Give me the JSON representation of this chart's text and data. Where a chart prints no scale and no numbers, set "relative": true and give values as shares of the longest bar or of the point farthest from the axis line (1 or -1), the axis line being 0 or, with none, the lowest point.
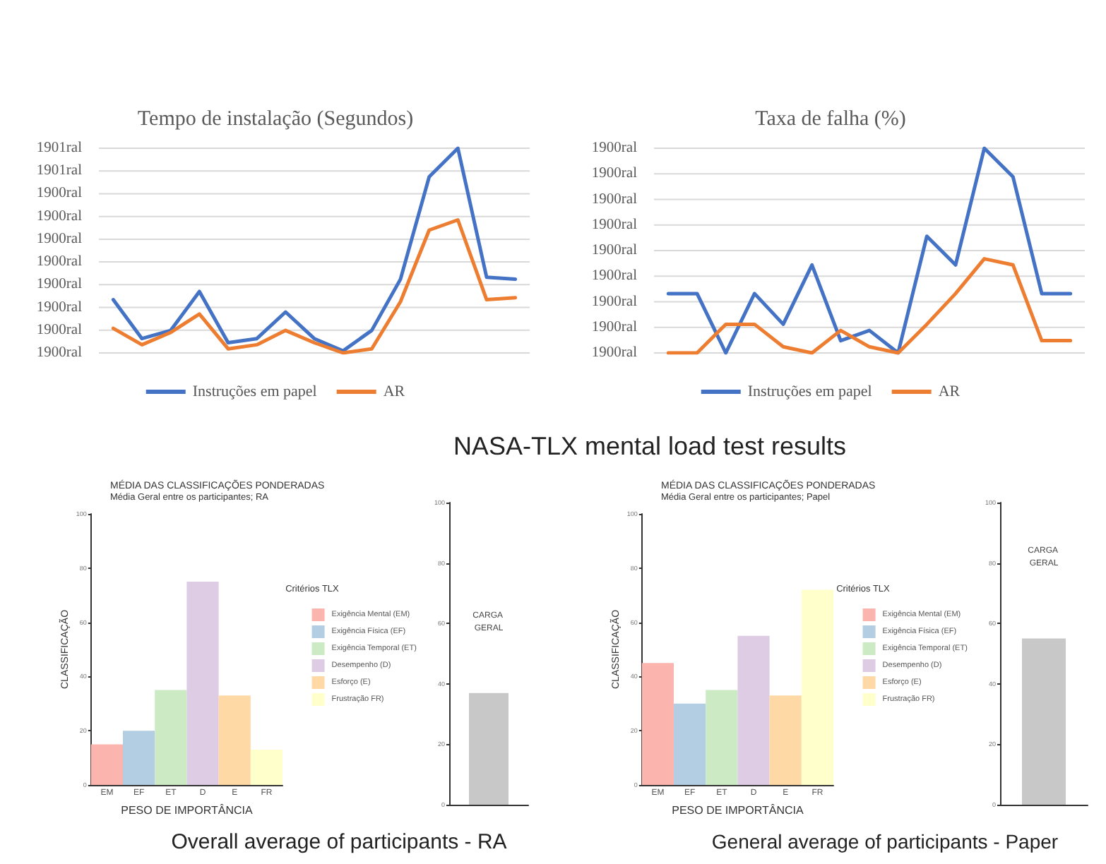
{
  "chart_data": [
    {
      "type": "line",
      "title": "Tempo de instalação (Segundos)",
      "categories": [
        null,
        null,
        null,
        null,
        null,
        null,
        null,
        null,
        null,
        null,
        null,
        null,
        null,
        null,
        null
      ],
      "series": [
        {
          "name": "Instruções em papel",
          "color": "#4472c4",
          "values": [
            0.26,
            0.07,
            0.11,
            0.3,
            0.05,
            0.07,
            0.2,
            0.07,
            0.01,
            0.11,
            0.36,
            0.86,
            1,
            0.37,
            0.36
          ]
        },
        {
          "name": "AR",
          "color": "#ed7d31",
          "values": [
            0.12,
            0.04,
            0.1,
            0.19,
            0.02,
            0.04,
            0.11,
            0.05,
            0,
            0.02,
            0.25,
            0.6,
            0.65,
            0.26,
            0.27
          ]
        }
      ],
      "relative": true,
      "annotations": [
        "1901ral",
        "1901ral",
        "1900ral",
        "1900ral",
        "1900ral",
        "1900ral",
        "1900ral",
        "1900ral",
        "1900ral",
        "1900ral"
      ],
      "grid": "y",
      "legend": "bottom",
      "marker": "none",
      "line_style": "solid"
    },
    {
      "type": "line",
      "title": "Taxa de falha (%)",
      "categories": [
        null,
        null,
        null,
        null,
        null,
        null,
        null,
        null,
        null,
        null,
        null,
        null,
        null,
        null,
        null
      ],
      "series": [
        {
          "name": "Instruções em papel",
          "color": "#4472c4",
          "values": [
            0.29,
            0.29,
            0,
            0.29,
            0.14,
            0.43,
            0.06,
            0.11,
            0,
            0.57,
            0.43,
            1,
            0.86,
            0.29,
            0.29
          ]
        },
        {
          "name": "AR",
          "color": "#ed7d31",
          "values": [
            0,
            0,
            0.14,
            0.14,
            0.03,
            0,
            0.11,
            0.03,
            0,
            0.14,
            0.29,
            0.46,
            0.43,
            0.06,
            0.06
          ]
        }
      ],
      "relative": true,
      "annotations": [
        "1900ral",
        "1900ral",
        "1900ral",
        "1900ral",
        "1900ral",
        "1900ral",
        "1900ral",
        "1900ral",
        "1900ral"
      ],
      "grid": "y",
      "legend": "bottom",
      "marker": "none",
      "line_style": "solid"
    },
    {
      "type": "bar",
      "title": "MÉDIA DAS CLASSIFICAÇÕES PONDERADAS",
      "subtitle": "Média Geral entre os participantes; RA",
      "xlabel": "PESO DE IMPORTÂNCIA",
      "ylabel": "CLASSIFICAÇÃO",
      "legend_title": "Critérios TLX",
      "annotations": [
        "NASA-TLX mental load test results"
      ],
      "categories": [
        "EM",
        "EF",
        "ET",
        "D",
        "E",
        "FR"
      ],
      "stacked": true,
      "series": [
        {
          "name": "Exigência Mental (EM)",
          "color": "#fbb4ae",
          "values": [
            15,
            null,
            null,
            null,
            null,
            null
          ]
        },
        {
          "name": "Exigência Física (EF)",
          "color": "#b3cde3",
          "values": [
            null,
            20,
            null,
            null,
            null,
            null
          ]
        },
        {
          "name": "Exigência Temporal (ET)",
          "color": "#ccebc5",
          "values": [
            null,
            null,
            35,
            null,
            null,
            null
          ]
        },
        {
          "name": "Desempenho (D)",
          "color": "#decbe4",
          "values": [
            null,
            null,
            null,
            75,
            null,
            null
          ]
        },
        {
          "name": "Esforço (E)",
          "color": "#fed9a6",
          "values": [
            null,
            null,
            null,
            null,
            33,
            null
          ]
        },
        {
          "name": "Frustração FR)",
          "color": "#ffffcc",
          "values": [
            null,
            null,
            null,
            null,
            null,
            13
          ]
        }
      ],
      "ylim": [
        0,
        100
      ],
      "yticks": [
        0,
        20,
        40,
        60,
        80,
        100
      ],
      "grid": false,
      "legend": "right"
    },
    {
      "type": "bar",
      "categories": [
        null
      ],
      "values": [
        37
      ],
      "color": "#c8c8c8",
      "ylim": [
        0,
        100
      ],
      "yticks": [
        0,
        20,
        40,
        60,
        80,
        100
      ],
      "grid": false,
      "annotations": [
        "CARGA GERAL",
        "Overall average of participants -   RA"
      ]
    },
    {
      "type": "bar",
      "title": "MÉDIA DAS CLASSIFICAÇÕES PONDERADAS",
      "subtitle": "Média Geral entre os participantes; Papel",
      "xlabel": "PESO DE IMPORTÂNCIA",
      "ylabel": "CLASSIFICAÇÃO",
      "legend_title": "Critérios TLX",
      "categories": [
        "EM",
        "EF",
        "ET",
        "D",
        "E",
        "FR"
      ],
      "stacked": true,
      "series": [
        {
          "name": "Exigência Mental (EM)",
          "color": "#fbb4ae",
          "values": [
            45,
            null,
            null,
            null,
            null,
            null
          ]
        },
        {
          "name": "Exigência Física (EF)",
          "color": "#b3cde3",
          "values": [
            null,
            30,
            null,
            null,
            null,
            null
          ]
        },
        {
          "name": "Exigência Temporal (ET)",
          "color": "#ccebc5",
          "values": [
            null,
            null,
            35,
            null,
            null,
            null
          ]
        },
        {
          "name": "Desempenho (D)",
          "color": "#decbe4",
          "values": [
            null,
            null,
            null,
            55,
            null,
            null
          ]
        },
        {
          "name": "Esforço (E)",
          "color": "#fed9a6",
          "values": [
            null,
            null,
            null,
            null,
            33,
            null
          ]
        },
        {
          "name": "Frustração FR)",
          "color": "#ffffcc",
          "values": [
            null,
            null,
            null,
            null,
            null,
            72
          ]
        }
      ],
      "ylim": [
        0,
        100
      ],
      "yticks": [
        0,
        20,
        40,
        60,
        80,
        100
      ],
      "grid": false,
      "legend": "right"
    },
    {
      "type": "bar",
      "categories": [
        null
      ],
      "values": [
        55
      ],
      "color": "#c8c8c8",
      "ylim": [
        0,
        100
      ],
      "yticks": [
        0,
        20,
        40,
        60,
        80,
        100
      ],
      "grid": false,
      "annotations": [
        "CARGA GERAL",
        "General average of participants - Paper"
      ]
    }
  ]
}
